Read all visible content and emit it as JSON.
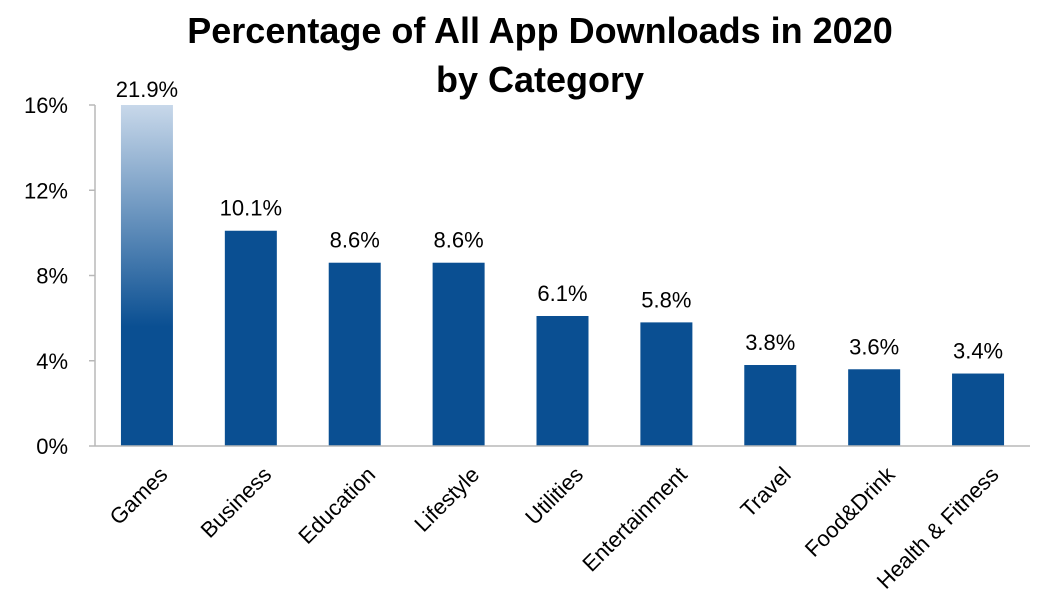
{
  "chart_data": {
    "type": "bar",
    "title_lines": [
      "Percentage of All App Downloads in 2020",
      "by Category"
    ],
    "categories": [
      "Games",
      "Business",
      "Education",
      "Lifestyle",
      "Utilities",
      "Entertainment",
      "Travel",
      "Food&Drink",
      "Health & Fitness"
    ],
    "values": [
      21.9,
      10.1,
      8.6,
      8.6,
      6.1,
      5.8,
      3.8,
      3.6,
      3.4
    ],
    "data_labels": [
      "21.9%",
      "10.1%",
      "8.6%",
      "8.6%",
      "6.1%",
      "5.8%",
      "3.8%",
      "3.6%",
      "3.4%"
    ],
    "ylim": [
      0,
      16
    ],
    "yticks": [
      0,
      4,
      8,
      12,
      16
    ],
    "ytick_labels": [
      "0%",
      "4%",
      "8%",
      "12%",
      "16%"
    ],
    "xlabel": "",
    "ylabel": "",
    "grid": false,
    "legend": "none",
    "bar_color": "#0a4f92",
    "first_bar_fade_color": "#c8d8ea",
    "axis_color": "#b8b8b8"
  }
}
